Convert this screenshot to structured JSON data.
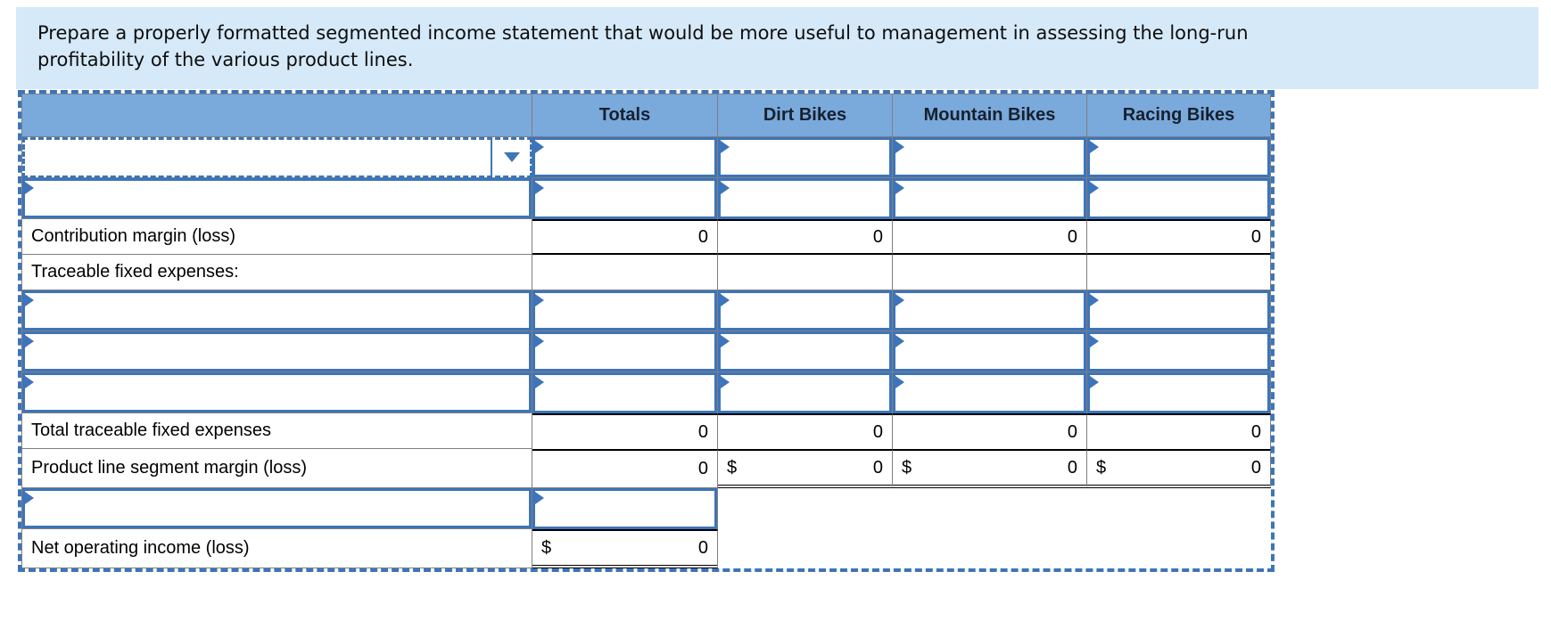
{
  "instruction": {
    "text": "Prepare a properly formatted segmented income statement that would be more useful to management in assessing the long-run profitability of the various product lines."
  },
  "table": {
    "header": {
      "blank": "",
      "totals": "Totals",
      "dirt": "Dirt Bikes",
      "mountain": "Mountain Bikes",
      "racing": "Racing Bikes"
    },
    "dropdown": {
      "selected": ""
    },
    "rows": {
      "contribution_margin": {
        "label": "Contribution margin (loss)",
        "totals": "0",
        "dirt": "0",
        "mountain": "0",
        "racing": "0"
      },
      "traceable_header": {
        "label": "Traceable fixed expenses:"
      },
      "total_traceable": {
        "label": "Total traceable fixed expenses",
        "totals": "0",
        "dirt": "0",
        "mountain": "0",
        "racing": "0"
      },
      "segment_margin": {
        "label": "Product line segment margin (loss)",
        "totals": "0",
        "dirt_currency": "$",
        "dirt": "0",
        "mountain_currency": "$",
        "mountain": "0",
        "racing_currency": "$",
        "racing": "0"
      },
      "net_operating_income": {
        "label": "Net operating income (loss)",
        "currency": "$",
        "totals": "0"
      }
    }
  },
  "colors": {
    "accent_blue": "#3e74b9",
    "header_bg": "#7aa9dc",
    "banner_bg": "#d6e9f8",
    "grid_gray": "#7f7f7f",
    "rule_black": "#000000"
  }
}
